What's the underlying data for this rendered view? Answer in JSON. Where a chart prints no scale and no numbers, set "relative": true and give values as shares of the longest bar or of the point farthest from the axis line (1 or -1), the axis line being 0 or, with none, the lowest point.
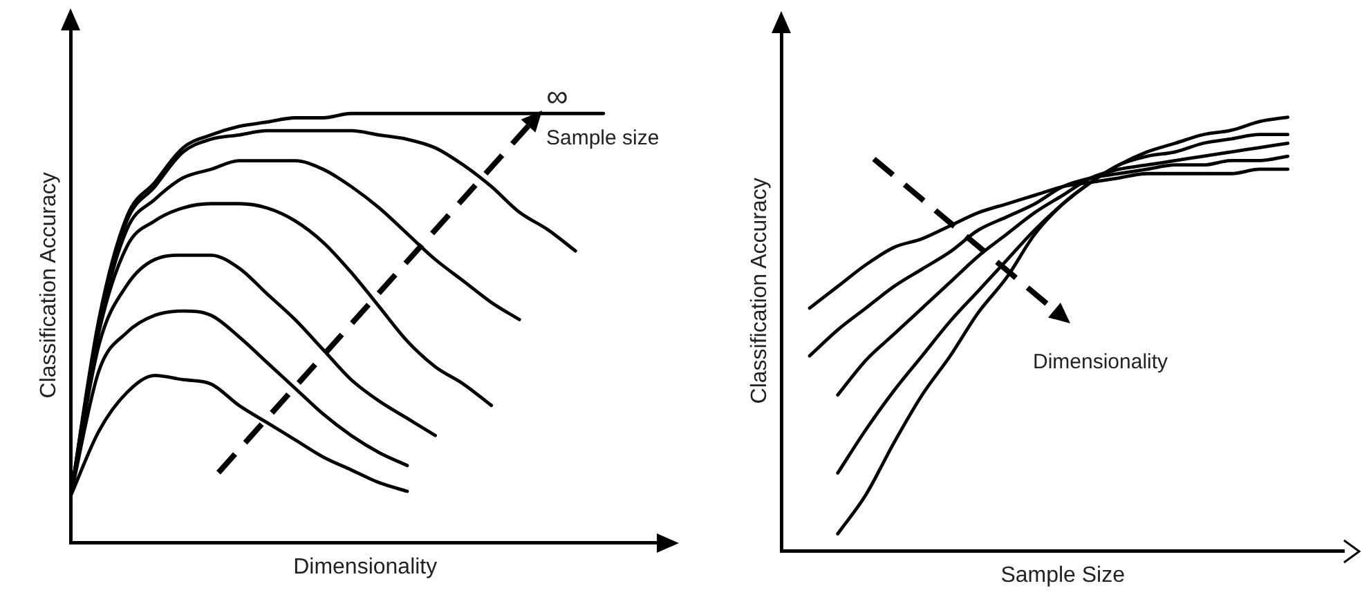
{
  "chart_data": [
    {
      "type": "line",
      "relative": true,
      "xlabel": "Dimensionality",
      "ylabel": "Classification Accuracy",
      "annotations": [
        "∞",
        "Sample size"
      ],
      "grid": false,
      "legend": false,
      "tick_labels": false,
      "marker": "none",
      "line_style": "solid",
      "categories": [
        null,
        null,
        null,
        null,
        null,
        null,
        null,
        null,
        null,
        null,
        null,
        null,
        null,
        null,
        null,
        null,
        null,
        null,
        null,
        null,
        null,
        null
      ],
      "series": [
        {
          "color": "#000000",
          "values": [
            0.11,
            0.52,
            0.76,
            0.84,
            0.92,
            0.95,
            0.97,
            0.98,
            0.99,
            0.99,
            1,
            1,
            1,
            1,
            1,
            1,
            1,
            1,
            1,
            1,
            null,
            null
          ]
        },
        {
          "color": "#000000",
          "values": [
            0.11,
            0.51,
            0.75,
            0.83,
            0.91,
            0.94,
            0.95,
            0.96,
            0.96,
            0.96,
            0.96,
            0.95,
            0.94,
            0.92,
            0.88,
            0.83,
            0.77,
            0.73,
            0.68,
            null,
            null,
            null
          ]
        },
        {
          "color": "#000000",
          "values": [
            0.11,
            0.5,
            0.73,
            0.8,
            0.85,
            0.87,
            0.89,
            0.89,
            0.89,
            0.87,
            0.83,
            0.78,
            0.72,
            0.66,
            0.61,
            0.56,
            0.52,
            null,
            null,
            null,
            null,
            null
          ]
        },
        {
          "color": "#000000",
          "values": [
            0.11,
            0.49,
            0.69,
            0.75,
            0.78,
            0.79,
            0.79,
            0.78,
            0.75,
            0.7,
            0.63,
            0.55,
            0.47,
            0.41,
            0.37,
            0.32,
            null,
            null,
            null,
            null,
            null,
            null
          ]
        },
        {
          "color": "#000000",
          "values": [
            0.11,
            0.46,
            0.6,
            0.66,
            0.67,
            0.67,
            0.64,
            0.58,
            0.52,
            0.45,
            0.38,
            0.33,
            0.29,
            0.25,
            null,
            null,
            null,
            null,
            null,
            null,
            null,
            null
          ]
        },
        {
          "color": "#000000",
          "values": [
            0.11,
            0.4,
            0.49,
            0.53,
            0.54,
            0.53,
            0.48,
            0.42,
            0.36,
            0.3,
            0.25,
            0.21,
            0.18,
            null,
            null,
            null,
            null,
            null,
            null,
            null,
            null,
            null
          ]
        },
        {
          "color": "#000000",
          "values": [
            0.11,
            0.26,
            0.35,
            0.39,
            0.38,
            0.37,
            0.32,
            0.28,
            0.24,
            0.2,
            0.17,
            0.14,
            0.12,
            null,
            null,
            null,
            null,
            null,
            null,
            null,
            null,
            null
          ]
        }
      ]
    },
    {
      "type": "line",
      "relative": true,
      "xlabel": "Sample Size",
      "ylabel": "Classification Accuracy",
      "annotations": [
        "Dimensionality"
      ],
      "grid": false,
      "legend": false,
      "tick_labels": false,
      "marker": "none",
      "line_style": "solid",
      "categories": [
        null,
        null,
        null,
        null,
        null,
        null,
        null,
        null,
        null,
        null,
        null,
        null,
        null,
        null,
        null,
        null,
        null,
        null,
        null,
        null,
        null
      ],
      "series": [
        {
          "color": "#000000",
          "values": [
            null,
            0.56,
            0.61,
            0.66,
            0.7,
            0.72,
            0.75,
            0.78,
            0.8,
            0.82,
            0.84,
            0.85,
            0.86,
            0.87,
            0.87,
            0.87,
            0.87,
            0.88,
            0.88,
            null,
            null
          ]
        },
        {
          "color": "#000000",
          "values": [
            null,
            0.45,
            0.51,
            0.56,
            0.61,
            0.65,
            0.69,
            0.74,
            0.77,
            0.8,
            0.84,
            0.86,
            0.87,
            0.88,
            0.89,
            0.89,
            0.9,
            0.9,
            0.91,
            null,
            null
          ]
        },
        {
          "color": "#000000",
          "values": [
            null,
            null,
            0.36,
            0.44,
            0.5,
            0.56,
            0.62,
            0.68,
            0.73,
            0.78,
            0.82,
            0.86,
            0.88,
            0.89,
            0.9,
            0.91,
            0.92,
            0.93,
            0.94,
            null,
            null
          ]
        },
        {
          "color": "#000000",
          "values": [
            null,
            null,
            0.18,
            0.28,
            0.37,
            0.45,
            0.53,
            0.6,
            0.67,
            0.74,
            0.8,
            0.85,
            0.89,
            0.91,
            0.92,
            0.94,
            0.95,
            0.96,
            0.96,
            null,
            null
          ]
        },
        {
          "color": "#000000",
          "values": [
            null,
            null,
            0.04,
            0.13,
            0.25,
            0.36,
            0.45,
            0.55,
            0.63,
            0.73,
            0.8,
            0.85,
            0.89,
            0.92,
            0.94,
            0.96,
            0.97,
            0.99,
            1.0,
            null,
            null
          ]
        }
      ]
    }
  ]
}
